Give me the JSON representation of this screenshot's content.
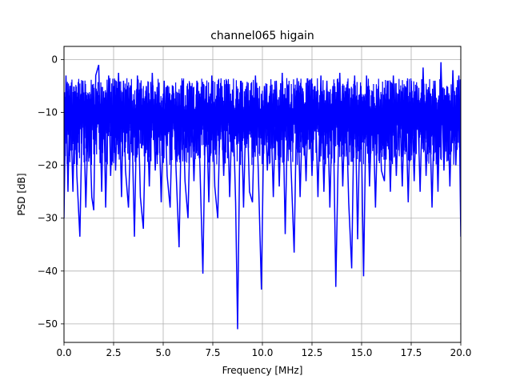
{
  "chart_data": {
    "type": "line",
    "title": "channel065 higain",
    "xlabel": "Frequency [MHz]",
    "ylabel": "PSD [dB]",
    "xlim": [
      0,
      20
    ],
    "ylim": [
      -53.5,
      2.5
    ],
    "xticks": [
      0.0,
      2.5,
      5.0,
      7.5,
      10.0,
      12.5,
      15.0,
      17.5,
      20.0
    ],
    "xtick_labels": [
      "0.0",
      "2.5",
      "5.0",
      "7.5",
      "10.0",
      "12.5",
      "15.0",
      "17.5",
      "20.0"
    ],
    "yticks": [
      0,
      -10,
      -20,
      -30,
      -40,
      -50
    ],
    "ytick_labels": [
      "0",
      "−10",
      "−20",
      "−30",
      "−40",
      "−50"
    ],
    "grid": true,
    "series": [
      {
        "color": "#0000ff",
        "note_upper_envelope_db": -3.5,
        "note_lower_envelope_db": -20,
        "x": [
          0.0,
          0.1,
          0.2,
          0.3,
          0.45,
          0.55,
          0.65,
          0.8,
          0.95,
          1.1,
          1.25,
          1.4,
          1.5,
          1.6,
          1.75,
          1.9,
          2.0,
          2.1,
          2.25,
          2.35,
          2.5,
          2.6,
          2.75,
          2.9,
          3.0,
          3.1,
          3.25,
          3.4,
          3.55,
          3.7,
          3.85,
          4.0,
          4.15,
          4.3,
          4.45,
          4.6,
          4.75,
          4.9,
          5.05,
          5.2,
          5.35,
          5.5,
          5.65,
          5.8,
          5.95,
          6.1,
          6.25,
          6.4,
          6.55,
          6.7,
          6.85,
          7.0,
          7.15,
          7.3,
          7.45,
          7.6,
          7.75,
          7.9,
          8.05,
          8.2,
          8.35,
          8.5,
          8.65,
          8.75,
          8.9,
          9.05,
          9.2,
          9.35,
          9.5,
          9.65,
          9.8,
          9.95,
          10.1,
          10.25,
          10.4,
          10.55,
          10.7,
          10.85,
          11.0,
          11.15,
          11.3,
          11.45,
          11.6,
          11.75,
          11.9,
          12.05,
          12.2,
          12.35,
          12.5,
          12.65,
          12.8,
          12.95,
          13.1,
          13.25,
          13.4,
          13.55,
          13.7,
          13.9,
          14.05,
          14.2,
          14.35,
          14.5,
          14.65,
          14.8,
          14.95,
          15.1,
          15.25,
          15.4,
          15.55,
          15.7,
          15.85,
          16.0,
          16.15,
          16.3,
          16.45,
          16.6,
          16.75,
          16.9,
          17.05,
          17.2,
          17.35,
          17.5,
          17.65,
          17.8,
          17.95,
          18.1,
          18.25,
          18.4,
          18.55,
          18.7,
          18.85,
          19.0,
          19.15,
          19.3,
          19.45,
          19.6,
          19.75,
          19.9,
          20.0
        ],
        "y": [
          -30,
          -3,
          -25,
          -5,
          -25,
          -6,
          -22,
          -33.5,
          -4,
          -28,
          -7,
          -26,
          -28.5,
          -3,
          -1,
          -25,
          -6,
          -28,
          -3,
          -22,
          -5,
          -21,
          -2.5,
          -26,
          -4,
          -21,
          -28,
          -8,
          -33.5,
          -3,
          -26,
          -32,
          -5,
          -24,
          -2.5,
          -21,
          -6,
          -27,
          -4,
          -22,
          -28,
          -5,
          -21,
          -35.5,
          -4,
          -23,
          -30,
          -5,
          -23,
          -4,
          -20,
          -40.5,
          -5,
          -27,
          -3,
          -24,
          -30,
          -5,
          -22,
          -4,
          -26,
          -6,
          -27,
          -51,
          -4,
          -28,
          -5,
          -25,
          -27,
          -3,
          -22,
          -43.5,
          -5,
          -21,
          -6,
          -26,
          -4,
          -24,
          -2.5,
          -33,
          -5,
          -21,
          -36.5,
          -3.5,
          -26,
          -6,
          -23,
          -4,
          -22,
          -5,
          -26,
          -3,
          -25,
          -4,
          -28,
          -5,
          -43,
          -2.5,
          -24,
          -6,
          -27,
          -39.5,
          -3,
          -34,
          -5,
          -41,
          -3,
          -24,
          -6,
          -28,
          -5,
          -21,
          -23,
          -4,
          -25,
          -3,
          -22,
          -6,
          -24,
          -5,
          -27,
          -4,
          -23,
          -5,
          -25,
          -1.5,
          -22,
          -6,
          -28,
          -4,
          -25,
          -0.5,
          -21,
          -5,
          -24,
          -2,
          -20,
          -3,
          -33.5
        ]
      }
    ]
  }
}
